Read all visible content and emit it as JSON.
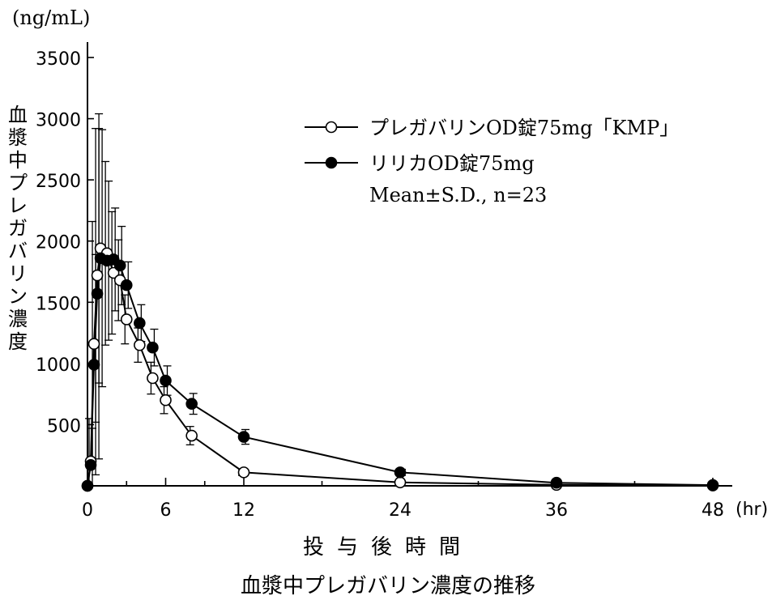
{
  "chart_data": {
    "type": "line",
    "title": "血漿中プレガバリン濃度の推移",
    "xlabel": "投与後時間",
    "ylabel": "血漿中プレガバリン濃度",
    "y_unit": "(ng/mL)",
    "x_unit": "(hr)",
    "xlim": [
      0,
      48
    ],
    "ylim": [
      0,
      3500
    ],
    "x_ticks": [
      0,
      6,
      12,
      24,
      36,
      48
    ],
    "x_minor_ticks": [
      3,
      9,
      18,
      30,
      42
    ],
    "y_ticks": [
      500,
      1000,
      1500,
      2000,
      2500,
      3000,
      3500
    ],
    "grid": false,
    "legend_position": "top-right",
    "legend_note": "Mean±S.D., n=23",
    "series": [
      {
        "name": "プレガバリンOD錠75mg「KMP」",
        "marker": "open-circle",
        "x": [
          0,
          0.25,
          0.5,
          0.75,
          1,
          1.5,
          2,
          2.5,
          3,
          4,
          5,
          6,
          8,
          12,
          24,
          36,
          48
        ],
        "y": [
          0,
          200,
          1160,
          1720,
          1940,
          1900,
          1740,
          1680,
          1360,
          1150,
          880,
          700,
          410,
          110,
          28,
          8,
          3
        ],
        "sd": [
          0,
          350,
          1000,
          1200,
          1100,
          750,
          500,
          330,
          200,
          140,
          130,
          110,
          75,
          25,
          10,
          5,
          0
        ]
      },
      {
        "name": "リリカOD錠75mg",
        "marker": "filled-circle",
        "x": [
          0,
          0.25,
          0.5,
          0.75,
          1,
          1.5,
          2,
          2.5,
          3,
          4,
          5,
          6,
          8,
          12,
          24,
          36,
          48
        ],
        "y": [
          0,
          170,
          990,
          1570,
          1860,
          1840,
          1850,
          1800,
          1640,
          1330,
          1130,
          860,
          670,
          400,
          110,
          25,
          6
        ],
        "sd": [
          0,
          300,
          900,
          1350,
          1050,
          650,
          420,
          320,
          190,
          150,
          150,
          120,
          85,
          60,
          25,
          10,
          0
        ]
      }
    ]
  }
}
